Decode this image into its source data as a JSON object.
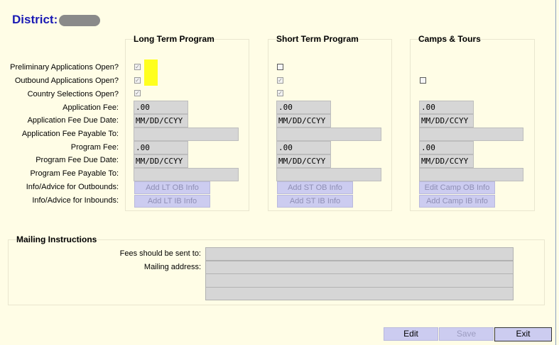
{
  "header": {
    "title": "District:"
  },
  "columns": [
    {
      "title": "Long Term Program"
    },
    {
      "title": "Short Term Program"
    },
    {
      "title": "Camps & Tours"
    }
  ],
  "row_labels": [
    "Preliminary Applications Open?",
    "Outbound Applications Open?",
    "Country Selections Open?",
    "Application Fee:",
    "Application Fee Due Date:",
    "Application Fee Payable To:",
    "Program Fee:",
    "Program Fee Due Date:",
    "Program Fee Payable To:",
    "Info/Advice for Outbounds:",
    "Info/Advice for Inbounds:"
  ],
  "values": {
    "app_fee": ".00",
    "app_fee_due": "MM/DD/CCYY",
    "program_fee": ".00",
    "program_fee_due": "MM/DD/CCYY"
  },
  "checkmark": "✓",
  "buttons": {
    "lt_ob": "Add LT OB Info",
    "lt_ib": "Add LT IB Info",
    "st_ob": "Add ST OB Info",
    "st_ib": "Add ST IB Info",
    "camp_ob": "Edit Camp OB Info",
    "camp_ib": "Add Camp IB Info"
  },
  "mailing": {
    "title": "Mailing Instructions",
    "fees_label": "Fees should be sent to:",
    "address_label": "Mailing address:"
  },
  "footer": {
    "edit": "Edit",
    "save": "Save",
    "exit": "Exit"
  },
  "colors": {
    "title": "#1a1ab4",
    "highlight": "#ffff1e",
    "button": "#ccccf0",
    "background": "#fffde6"
  }
}
